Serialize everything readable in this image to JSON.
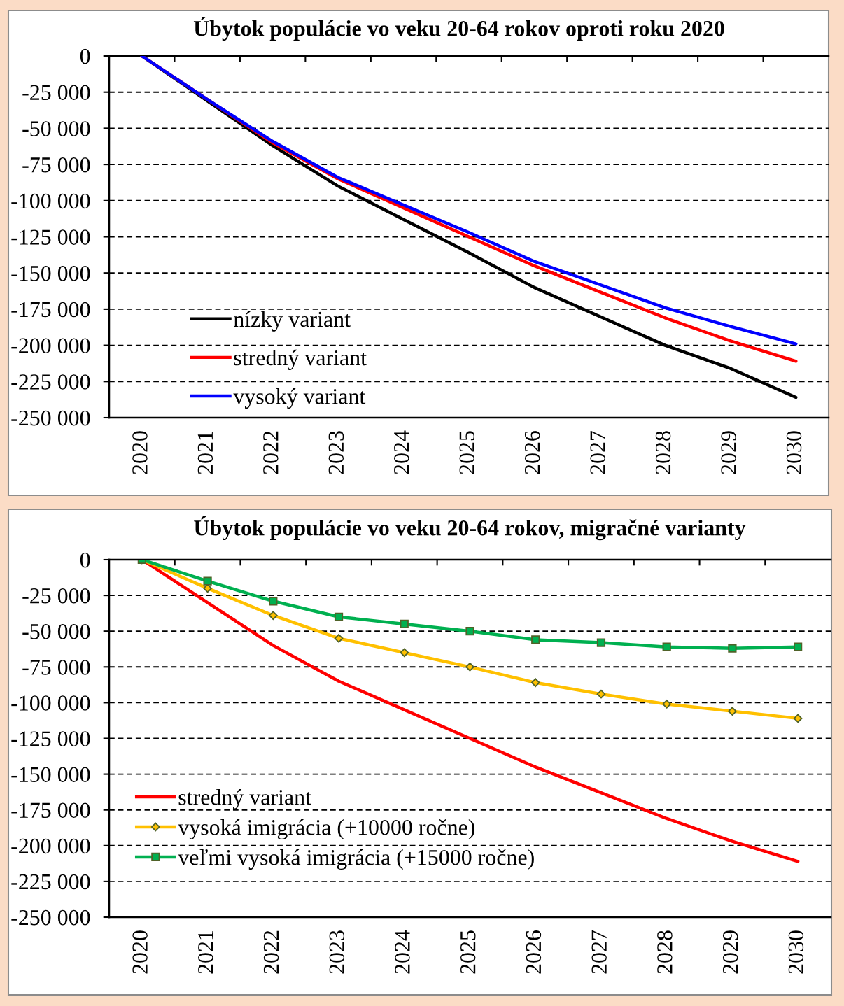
{
  "chart_data": [
    {
      "type": "line",
      "title": "Úbytok populácie vo veku 20-64 rokov oproti roku 2020",
      "categories": [
        "2020",
        "2021",
        "2022",
        "2023",
        "2024",
        "2025",
        "2026",
        "2027",
        "2028",
        "2029",
        "2030"
      ],
      "series": [
        {
          "name": "nízky variant",
          "color": "#000000",
          "values": [
            0,
            -31000,
            -62000,
            -90000,
            -113000,
            -136000,
            -160000,
            -180000,
            -200000,
            -216000,
            -236000
          ]
        },
        {
          "name": "stredný variant",
          "color": "#ff0000",
          "values": [
            0,
            -30000,
            -60000,
            -85000,
            -105000,
            -125000,
            -145000,
            -163000,
            -181000,
            -197000,
            -211000
          ]
        },
        {
          "name": "vysoký variant",
          "color": "#0000ff",
          "values": [
            0,
            -30000,
            -59000,
            -84000,
            -103000,
            -122000,
            -142000,
            -158000,
            -174000,
            -187000,
            -199000
          ]
        }
      ],
      "ylim": [
        -250000,
        0
      ],
      "yticks": [
        {
          "value": -250000,
          "label": "-250 000"
        },
        {
          "value": -225000,
          "label": "-225 000"
        },
        {
          "value": -200000,
          "label": "-200 000"
        },
        {
          "value": -175000,
          "label": "-175 000"
        },
        {
          "value": -150000,
          "label": "-150 000"
        },
        {
          "value": -125000,
          "label": "-125 000"
        },
        {
          "value": -100000,
          "label": "-100 000"
        },
        {
          "value": -75000,
          "label": "-75 000"
        },
        {
          "value": -50000,
          "label": "-50 000"
        },
        {
          "value": -25000,
          "label": "-25 000"
        },
        0
      ],
      "grid": "y",
      "legend": "bottom left",
      "line_style": "solid"
    },
    {
      "type": "line",
      "title": "Úbytok populácie vo veku 20-64 rokov, migračné varianty",
      "categories": [
        "2020",
        "2021",
        "2022",
        "2023",
        "2024",
        "2025",
        "2026",
        "2027",
        "2028",
        "2029",
        "2030"
      ],
      "series": [
        {
          "name": "stredný variant",
          "color": "#ff0000",
          "marker": "none",
          "values": [
            0,
            -30000,
            -60000,
            -85000,
            -105000,
            -125000,
            -145000,
            -163000,
            -181000,
            -197000,
            -211000
          ]
        },
        {
          "name": "vysoká imigrácia (+10000 ročne)",
          "color": "#ffc000",
          "marker": "diamond",
          "values": [
            0,
            -20000,
            -39000,
            -55000,
            -65000,
            -75000,
            -86000,
            -94000,
            -101000,
            -106000,
            -111000
          ]
        },
        {
          "name": "veľmi vysoká imigrácia (+15000 ročne)",
          "color": "#00b050",
          "marker": "square",
          "values": [
            0,
            -15000,
            -29000,
            -40000,
            -45000,
            -50000,
            -56000,
            -58000,
            -61000,
            -62000,
            -61000
          ]
        }
      ],
      "ylim": [
        -250000,
        0
      ],
      "yticks": [
        {
          "value": -250000,
          "label": "-250 000"
        },
        {
          "value": -225000,
          "label": "-225 000"
        },
        {
          "value": -200000,
          "label": "-200 000"
        },
        {
          "value": -175000,
          "label": "-175 000"
        },
        {
          "value": -150000,
          "label": "-150 000"
        },
        {
          "value": -125000,
          "label": "-125 000"
        },
        {
          "value": -100000,
          "label": "-100 000"
        },
        {
          "value": -75000,
          "label": "-75 000"
        },
        {
          "value": -50000,
          "label": "-50 000"
        },
        {
          "value": -25000,
          "label": "-25 000"
        },
        0
      ],
      "grid": "y",
      "legend": "bottom left",
      "line_style": "solid"
    }
  ]
}
